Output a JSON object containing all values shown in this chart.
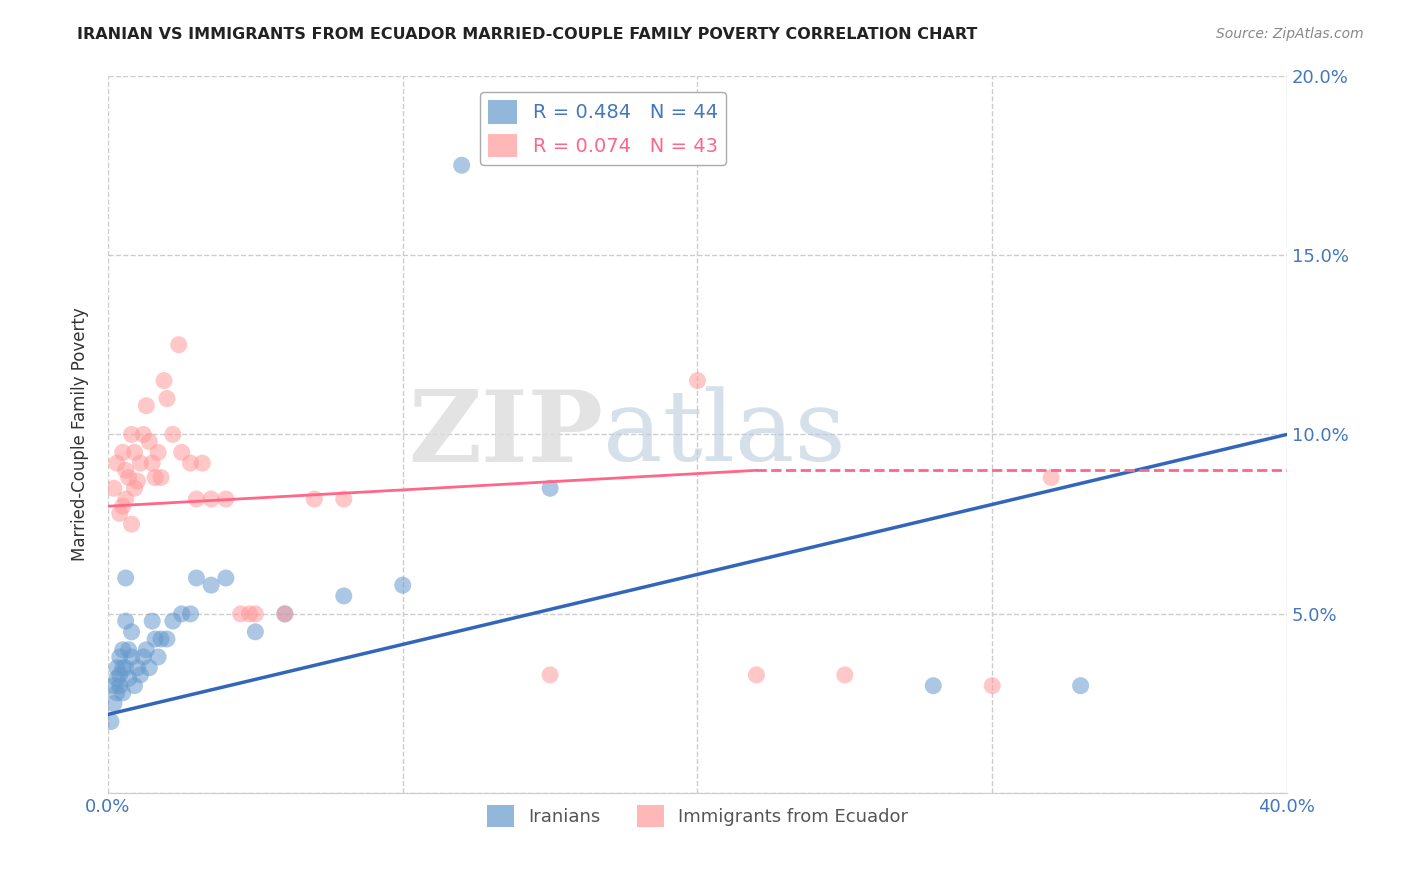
{
  "title": "IRANIAN VS IMMIGRANTS FROM ECUADOR MARRIED-COUPLE FAMILY POVERTY CORRELATION CHART",
  "source": "Source: ZipAtlas.com",
  "ylabel": "Married-Couple Family Poverty",
  "xlim": [
    0.0,
    0.4
  ],
  "ylim": [
    0.0,
    0.2
  ],
  "xticks": [
    0.0,
    0.1,
    0.2,
    0.3,
    0.4
  ],
  "yticks": [
    0.0,
    0.05,
    0.1,
    0.15,
    0.2
  ],
  "xticklabels": [
    "0.0%",
    "",
    "",
    "",
    "40.0%"
  ],
  "yticklabels_right": [
    "",
    "5.0%",
    "10.0%",
    "15.0%",
    "20.0%"
  ],
  "iranian_color": "#6699CC",
  "ecuador_color": "#FF9999",
  "iranian_line_color": "#3366BB",
  "ecuador_line_color": "#FF6688",
  "iranian_R": 0.484,
  "iranian_N": 44,
  "ecuador_R": 0.074,
  "ecuador_N": 43,
  "watermark_zip": "ZIP",
  "watermark_atlas": "atlas",
  "background_color": "#ffffff",
  "grid_color": "#cccccc",
  "axis_label_color": "#4477BB",
  "legend_label_color_iranian": "#4477BB",
  "legend_label_color_ecuador": "#FF6688",
  "iranian_scatter": [
    [
      0.001,
      0.02
    ],
    [
      0.002,
      0.025
    ],
    [
      0.002,
      0.03
    ],
    [
      0.003,
      0.032
    ],
    [
      0.003,
      0.028
    ],
    [
      0.003,
      0.035
    ],
    [
      0.004,
      0.03
    ],
    [
      0.004,
      0.038
    ],
    [
      0.004,
      0.033
    ],
    [
      0.005,
      0.035
    ],
    [
      0.005,
      0.04
    ],
    [
      0.005,
      0.028
    ],
    [
      0.006,
      0.048
    ],
    [
      0.006,
      0.06
    ],
    [
      0.006,
      0.035
    ],
    [
      0.007,
      0.04
    ],
    [
      0.007,
      0.032
    ],
    [
      0.008,
      0.038
    ],
    [
      0.008,
      0.045
    ],
    [
      0.009,
      0.03
    ],
    [
      0.01,
      0.035
    ],
    [
      0.011,
      0.033
    ],
    [
      0.012,
      0.038
    ],
    [
      0.013,
      0.04
    ],
    [
      0.014,
      0.035
    ],
    [
      0.015,
      0.048
    ],
    [
      0.016,
      0.043
    ],
    [
      0.017,
      0.038
    ],
    [
      0.018,
      0.043
    ],
    [
      0.02,
      0.043
    ],
    [
      0.022,
      0.048
    ],
    [
      0.025,
      0.05
    ],
    [
      0.028,
      0.05
    ],
    [
      0.03,
      0.06
    ],
    [
      0.035,
      0.058
    ],
    [
      0.04,
      0.06
    ],
    [
      0.05,
      0.045
    ],
    [
      0.06,
      0.05
    ],
    [
      0.08,
      0.055
    ],
    [
      0.1,
      0.058
    ],
    [
      0.12,
      0.175
    ],
    [
      0.15,
      0.085
    ],
    [
      0.28,
      0.03
    ],
    [
      0.33,
      0.03
    ]
  ],
  "ecuador_scatter": [
    [
      0.002,
      0.085
    ],
    [
      0.003,
      0.092
    ],
    [
      0.004,
      0.078
    ],
    [
      0.005,
      0.08
    ],
    [
      0.005,
      0.095
    ],
    [
      0.006,
      0.09
    ],
    [
      0.006,
      0.082
    ],
    [
      0.007,
      0.088
    ],
    [
      0.008,
      0.075
    ],
    [
      0.008,
      0.1
    ],
    [
      0.009,
      0.085
    ],
    [
      0.009,
      0.095
    ],
    [
      0.01,
      0.087
    ],
    [
      0.011,
      0.092
    ],
    [
      0.012,
      0.1
    ],
    [
      0.013,
      0.108
    ],
    [
      0.014,
      0.098
    ],
    [
      0.015,
      0.092
    ],
    [
      0.016,
      0.088
    ],
    [
      0.017,
      0.095
    ],
    [
      0.018,
      0.088
    ],
    [
      0.019,
      0.115
    ],
    [
      0.02,
      0.11
    ],
    [
      0.022,
      0.1
    ],
    [
      0.024,
      0.125
    ],
    [
      0.025,
      0.095
    ],
    [
      0.028,
      0.092
    ],
    [
      0.03,
      0.082
    ],
    [
      0.032,
      0.092
    ],
    [
      0.035,
      0.082
    ],
    [
      0.04,
      0.082
    ],
    [
      0.045,
      0.05
    ],
    [
      0.048,
      0.05
    ],
    [
      0.05,
      0.05
    ],
    [
      0.06,
      0.05
    ],
    [
      0.07,
      0.082
    ],
    [
      0.08,
      0.082
    ],
    [
      0.15,
      0.033
    ],
    [
      0.2,
      0.115
    ],
    [
      0.22,
      0.033
    ],
    [
      0.25,
      0.033
    ],
    [
      0.3,
      0.03
    ],
    [
      0.32,
      0.088
    ]
  ],
  "iranian_trendline": [
    0.0,
    0.4,
    0.022,
    0.1
  ],
  "ecuador_trendline_solid": [
    0.0,
    0.22,
    0.08,
    0.09
  ],
  "ecuador_trendline_dashed": [
    0.22,
    0.4,
    0.09,
    0.09
  ]
}
